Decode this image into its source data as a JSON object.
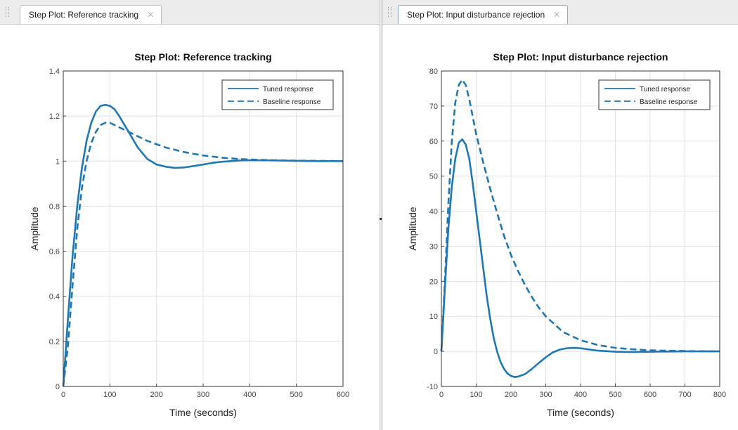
{
  "tabs": [
    {
      "label": "Step Plot: Reference tracking"
    },
    {
      "label": "Step Plot: Input disturbance rejection"
    }
  ],
  "chart_data": [
    {
      "type": "line",
      "title": "Step Plot: Reference tracking",
      "xlabel": "Time (seconds)",
      "ylabel": "Amplitude",
      "xlim": [
        0,
        600
      ],
      "ylim": [
        0,
        1.4
      ],
      "xticks": [
        "0",
        "100",
        "200",
        "300",
        "400",
        "500",
        "600"
      ],
      "yticks": [
        "0",
        "0.2",
        "0.4",
        "0.6",
        "0.8",
        "1",
        "1.2",
        "1.4"
      ],
      "grid": true,
      "legend_position": "top-right",
      "color": "#1f77b4",
      "series": [
        {
          "name": "Tuned response",
          "style": "solid",
          "x": [
            0,
            10,
            20,
            30,
            40,
            50,
            60,
            70,
            80,
            90,
            100,
            110,
            120,
            140,
            160,
            180,
            200,
            220,
            240,
            260,
            280,
            300,
            320,
            340,
            360,
            380,
            400,
            450,
            500,
            550,
            600
          ],
          "y": [
            0,
            0.3,
            0.58,
            0.8,
            0.97,
            1.09,
            1.17,
            1.22,
            1.245,
            1.25,
            1.245,
            1.23,
            1.2,
            1.13,
            1.06,
            1.01,
            0.985,
            0.975,
            0.97,
            0.972,
            0.978,
            0.985,
            0.992,
            0.997,
            1.0,
            1.003,
            1.004,
            1.003,
            1.001,
            1.0,
            1.0
          ]
        },
        {
          "name": "Baseline response",
          "style": "dashed",
          "x": [
            0,
            10,
            20,
            30,
            40,
            50,
            60,
            70,
            80,
            90,
            100,
            110,
            120,
            140,
            160,
            180,
            200,
            220,
            240,
            260,
            280,
            300,
            320,
            340,
            360,
            380,
            400,
            450,
            500,
            550,
            600
          ],
          "y": [
            0,
            0.18,
            0.45,
            0.7,
            0.88,
            1.0,
            1.08,
            1.13,
            1.16,
            1.17,
            1.17,
            1.16,
            1.15,
            1.13,
            1.11,
            1.09,
            1.075,
            1.06,
            1.05,
            1.04,
            1.032,
            1.025,
            1.02,
            1.015,
            1.012,
            1.009,
            1.007,
            1.004,
            1.002,
            1.001,
            1.0
          ]
        }
      ]
    },
    {
      "type": "line",
      "title": "Step Plot: Input disturbance rejection",
      "xlabel": "Time (seconds)",
      "ylabel": "Amplitude",
      "xlim": [
        0,
        800
      ],
      "ylim": [
        -10,
        80
      ],
      "xticks": [
        "0",
        "100",
        "200",
        "300",
        "400",
        "500",
        "600",
        "700",
        "800"
      ],
      "yticks": [
        "-10",
        "0",
        "10",
        "20",
        "30",
        "40",
        "50",
        "60",
        "70",
        "80"
      ],
      "grid": true,
      "legend_position": "top-right",
      "color": "#1f77b4",
      "series": [
        {
          "name": "Tuned response",
          "style": "solid",
          "x": [
            0,
            10,
            20,
            30,
            40,
            50,
            60,
            70,
            80,
            90,
            100,
            110,
            120,
            130,
            140,
            150,
            160,
            170,
            180,
            190,
            200,
            210,
            220,
            240,
            260,
            280,
            300,
            320,
            340,
            360,
            380,
            400,
            420,
            450,
            500,
            550,
            600,
            700,
            800
          ],
          "y": [
            0,
            18,
            35,
            47,
            55,
            59.5,
            60.5,
            59,
            55,
            48,
            40,
            32,
            24,
            16,
            9.5,
            4,
            0,
            -3,
            -5,
            -6.3,
            -7,
            -7.3,
            -7.2,
            -6.5,
            -5,
            -3.3,
            -1.7,
            -0.3,
            0.5,
            0.9,
            1.0,
            0.9,
            0.6,
            0.2,
            -0.1,
            -0.2,
            -0.1,
            0,
            0
          ]
        },
        {
          "name": "Baseline response",
          "style": "dashed",
          "x": [
            0,
            10,
            20,
            30,
            40,
            50,
            60,
            70,
            80,
            90,
            100,
            120,
            140,
            160,
            180,
            200,
            220,
            240,
            260,
            280,
            300,
            350,
            400,
            450,
            500,
            550,
            600,
            700,
            800
          ],
          "y": [
            0,
            20,
            42,
            60,
            71,
            76,
            77.5,
            76,
            72,
            67,
            62,
            54,
            46.5,
            39.5,
            33,
            27.5,
            23,
            19,
            15.5,
            12.5,
            10,
            5.5,
            3.2,
            1.8,
            1.0,
            0.6,
            0.3,
            0.1,
            0
          ]
        }
      ]
    }
  ]
}
